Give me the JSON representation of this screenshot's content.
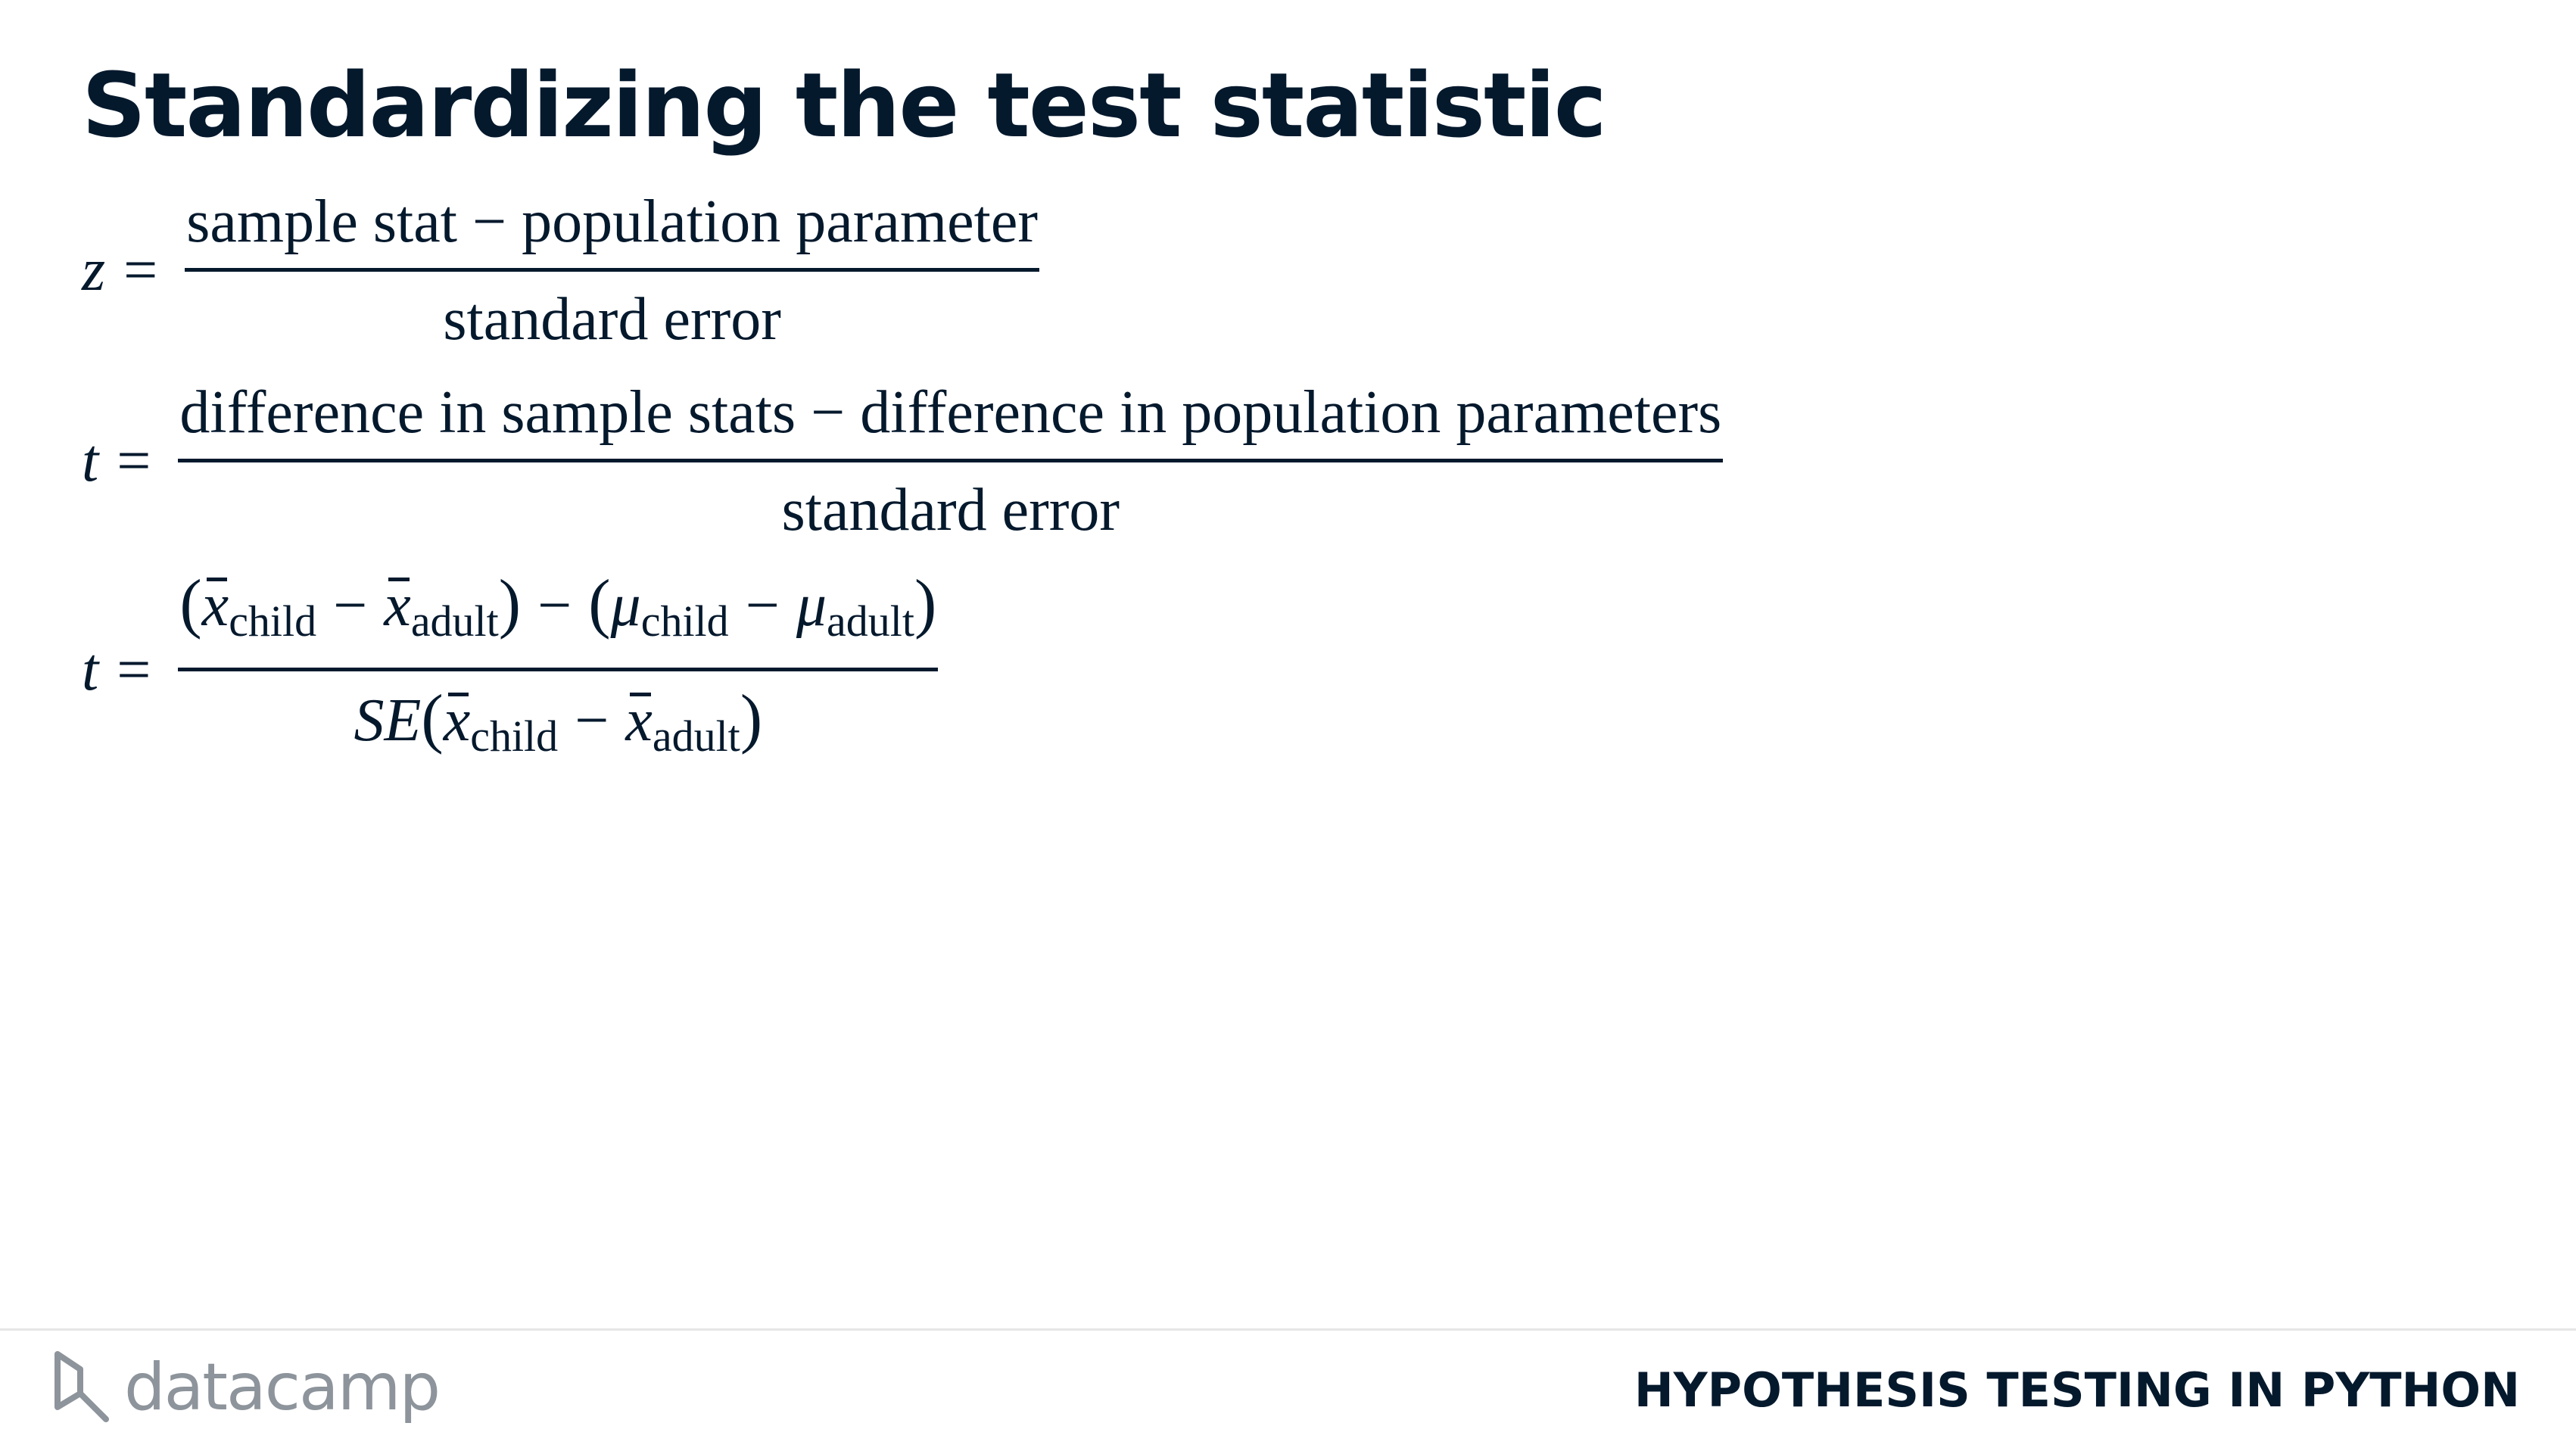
{
  "slide": {
    "title": "Standardizing the test statistic"
  },
  "formulas": {
    "z": {
      "lhs": "z",
      "eq": "=",
      "numerator": "sample stat − population parameter",
      "denominator": "standard error"
    },
    "t": {
      "lhs": "t",
      "eq": "=",
      "numerator": "difference in sample stats − difference in population parameters",
      "denominator": "standard error"
    },
    "t_specific": {
      "lhs": "t",
      "eq": "=",
      "x": "x",
      "mu": "μ",
      "se": "SE",
      "minus": "−",
      "open": "(",
      "close": ")",
      "child": "child",
      "adult": "adult"
    }
  },
  "footer": {
    "logo_icon": "datacamp-logo-icon",
    "logo_text": "datacamp",
    "course_title": "HYPOTHESIS TESTING IN PYTHON"
  }
}
